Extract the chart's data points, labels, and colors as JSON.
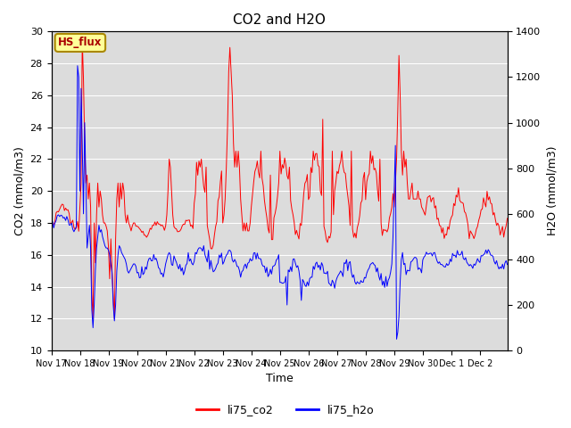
{
  "title": "CO2 and H2O",
  "ylabel_left": "CO2 (mmol/m3)",
  "ylabel_right": "H2O (mmol/m3)",
  "xlabel": "Time",
  "ylim_left": [
    10,
    30
  ],
  "ylim_right": [
    0,
    1400
  ],
  "yticks_left": [
    10,
    12,
    14,
    16,
    18,
    20,
    22,
    24,
    26,
    28,
    30
  ],
  "yticks_right": [
    0,
    200,
    400,
    600,
    800,
    1000,
    1200,
    1400
  ],
  "co2_color": "#ff0000",
  "h2o_color": "#0000ff",
  "fig_bg": "#ffffff",
  "plot_bg": "#dcdcdc",
  "annotation_text": "HS_flux",
  "annotation_bg": "#ffff99",
  "annotation_border": "#aa8800",
  "annotation_text_color": "#aa0000",
  "legend_co2": "li75_co2",
  "legend_h2o": "li75_h2o",
  "title_fontsize": 11,
  "axis_fontsize": 9,
  "tick_fontsize": 8,
  "line_width": 0.7
}
